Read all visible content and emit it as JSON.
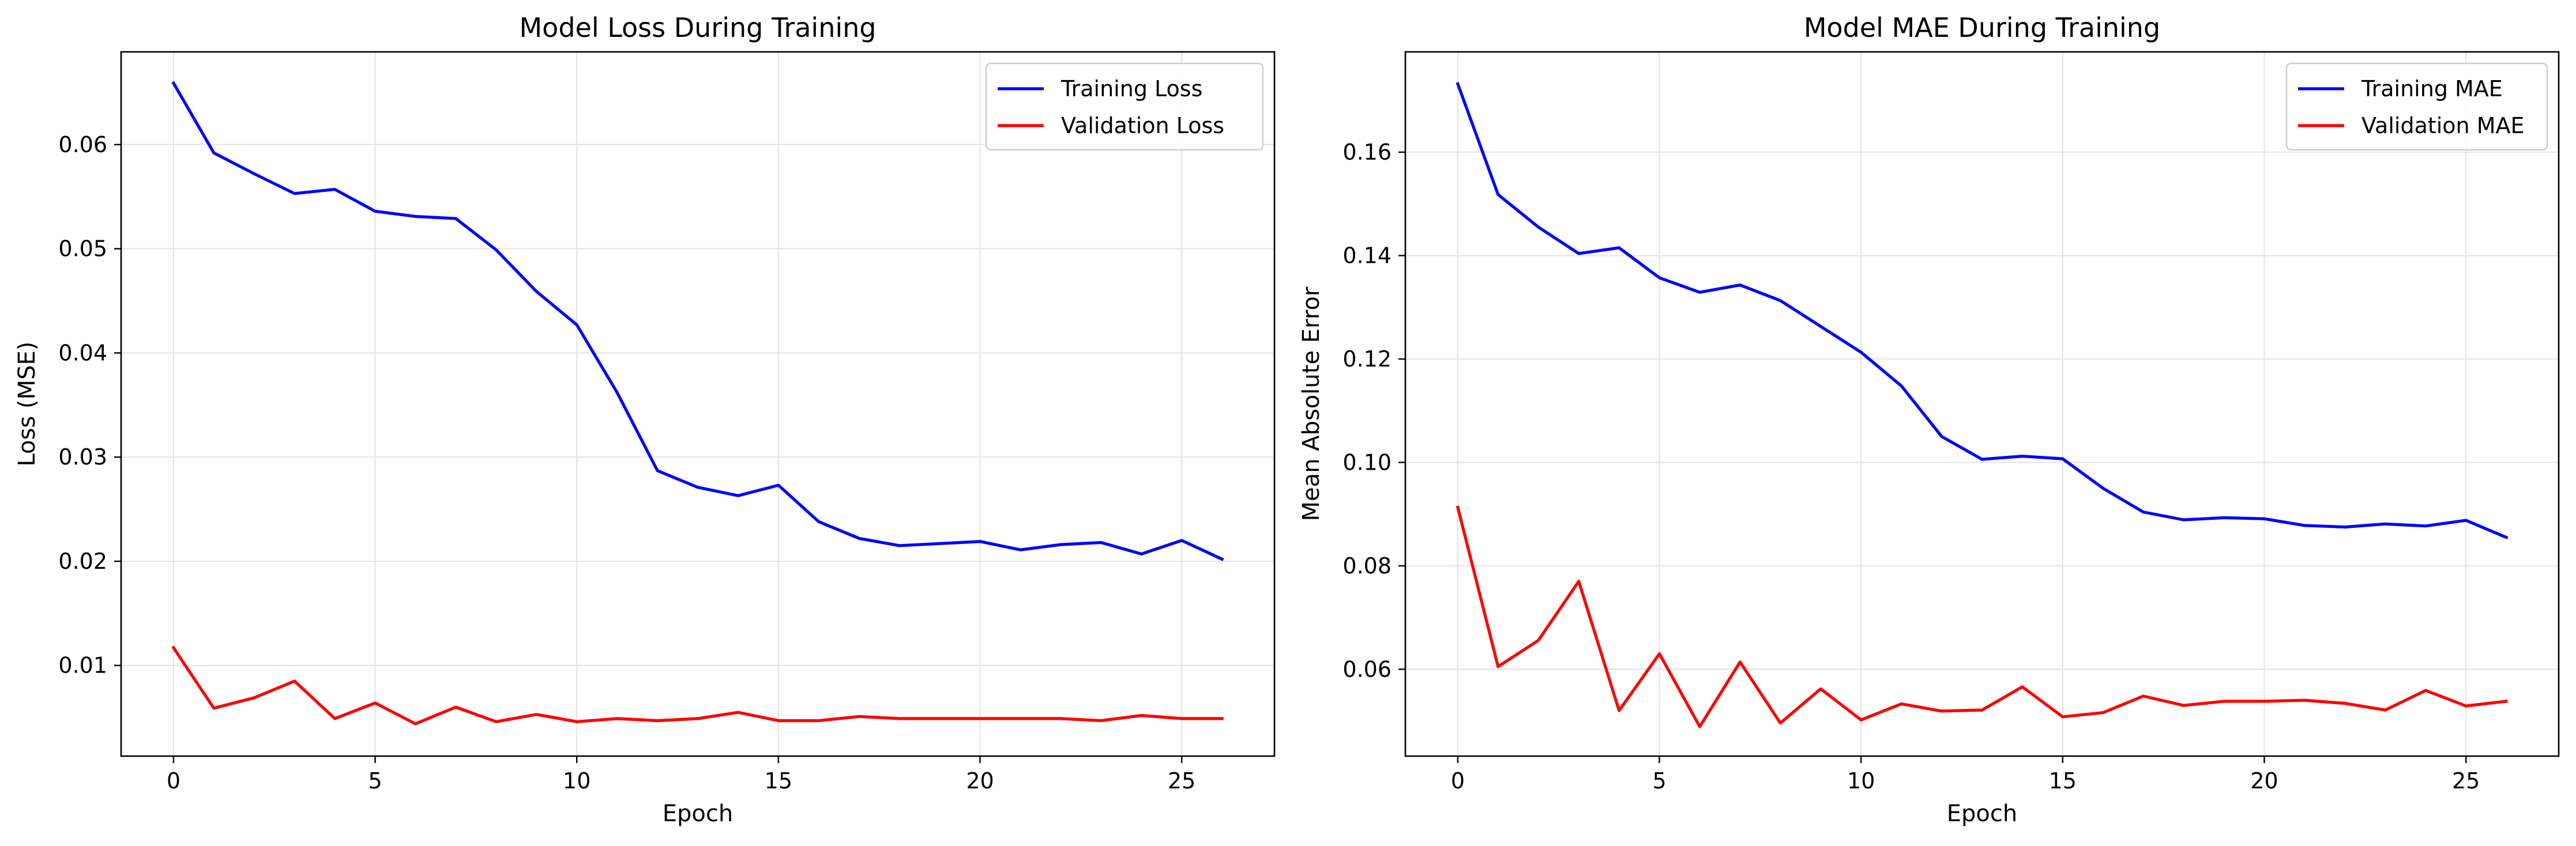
{
  "chart_data": [
    {
      "type": "line",
      "title": "Model Loss During Training",
      "xlabel": "Epoch",
      "ylabel": "Loss (MSE)",
      "xlim": [
        -1.3,
        27.3
      ],
      "ylim": [
        0.0013,
        0.0689
      ],
      "xticks": [
        0,
        5,
        10,
        15,
        20,
        25
      ],
      "xtick_labels": [
        "0",
        "5",
        "10",
        "15",
        "20",
        "25"
      ],
      "yticks": [
        0.01,
        0.02,
        0.03,
        0.04,
        0.05,
        0.06
      ],
      "ytick_labels": [
        "0.01",
        "0.02",
        "0.03",
        "0.04",
        "0.05",
        "0.06"
      ],
      "grid": true,
      "legend_position": "top-right",
      "x": [
        0,
        1,
        2,
        3,
        4,
        5,
        6,
        7,
        8,
        9,
        10,
        11,
        12,
        13,
        14,
        15,
        16,
        17,
        18,
        19,
        20,
        21,
        22,
        23,
        24,
        25,
        26
      ],
      "series": [
        {
          "name": "Training Loss",
          "color": "#0000ff",
          "values": [
            0.0659,
            0.0592,
            0.0572,
            0.0553,
            0.0557,
            0.0536,
            0.0531,
            0.0529,
            0.0499,
            0.0459,
            0.0427,
            0.0362,
            0.0287,
            0.0271,
            0.0263,
            0.0273,
            0.0238,
            0.0222,
            0.0215,
            0.0217,
            0.0219,
            0.0211,
            0.0216,
            0.0218,
            0.0207,
            0.022,
            0.0202
          ]
        },
        {
          "name": "Validation Loss",
          "color": "#ff0000",
          "values": [
            0.0117,
            0.0059,
            0.0069,
            0.0085,
            0.0049,
            0.0064,
            0.0044,
            0.006,
            0.0046,
            0.0053,
            0.0046,
            0.0049,
            0.0047,
            0.0049,
            0.0055,
            0.0047,
            0.0047,
            0.0051,
            0.0049,
            0.0049,
            0.0049,
            0.0049,
            0.0049,
            0.0047,
            0.0052,
            0.0049,
            0.0049
          ]
        }
      ]
    },
    {
      "type": "line",
      "title": "Model MAE During Training",
      "xlabel": "Epoch",
      "ylabel": "Mean Absolute Error",
      "xlim": [
        -1.3,
        27.3
      ],
      "ylim": [
        0.0432,
        0.1794
      ],
      "xticks": [
        0,
        5,
        10,
        15,
        20,
        25
      ],
      "xtick_labels": [
        "0",
        "5",
        "10",
        "15",
        "20",
        "25"
      ],
      "yticks": [
        0.06,
        0.08,
        0.1,
        0.12,
        0.14,
        0.16
      ],
      "ytick_labels": [
        "0.06",
        "0.08",
        "0.10",
        "0.12",
        "0.14",
        "0.16"
      ],
      "grid": true,
      "legend_position": "top-right",
      "x": [
        0,
        1,
        2,
        3,
        4,
        5,
        6,
        7,
        8,
        9,
        10,
        11,
        12,
        13,
        14,
        15,
        16,
        17,
        18,
        19,
        20,
        21,
        22,
        23,
        24,
        25,
        26
      ],
      "series": [
        {
          "name": "Training MAE",
          "color": "#0000ff",
          "values": [
            0.1732,
            0.1518,
            0.1455,
            0.1404,
            0.1415,
            0.1357,
            0.1329,
            0.1343,
            0.1313,
            0.1263,
            0.1213,
            0.1148,
            0.105,
            0.1006,
            0.1012,
            0.1007,
            0.095,
            0.0904,
            0.0889,
            0.0893,
            0.0891,
            0.0878,
            0.0875,
            0.0881,
            0.0877,
            0.0888,
            0.0855
          ]
        },
        {
          "name": "Validation MAE",
          "color": "#ff0000",
          "values": [
            0.0913,
            0.0605,
            0.0656,
            0.077,
            0.052,
            0.063,
            0.0489,
            0.0614,
            0.0496,
            0.0562,
            0.0502,
            0.0533,
            0.0519,
            0.0521,
            0.0566,
            0.0508,
            0.0516,
            0.0548,
            0.053,
            0.0538,
            0.0538,
            0.054,
            0.0534,
            0.0521,
            0.0559,
            0.0529,
            0.0538
          ]
        }
      ]
    }
  ]
}
